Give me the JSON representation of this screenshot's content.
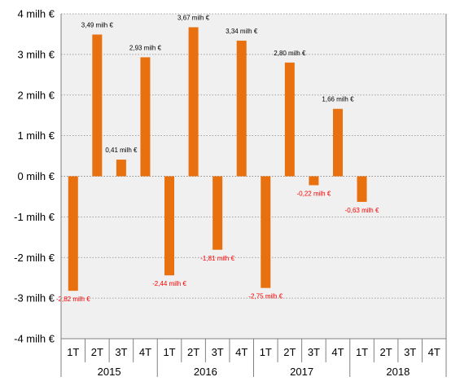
{
  "chart_data": {
    "type": "bar",
    "title": "",
    "xlabel": "",
    "ylabel": "",
    "ylim": [
      -4,
      4
    ],
    "yticks": [
      {
        "value": 4,
        "label": "4 milh €"
      },
      {
        "value": 3,
        "label": "3 milh €"
      },
      {
        "value": 2,
        "label": "2 milh €"
      },
      {
        "value": 1,
        "label": "1 milh €"
      },
      {
        "value": 0,
        "label": "0 milh €"
      },
      {
        "value": -1,
        "label": "-1 milh €"
      },
      {
        "value": -2,
        "label": "-2 milh €"
      },
      {
        "value": -3,
        "label": "-3 milh €"
      },
      {
        "value": -4,
        "label": "-4 milh €"
      }
    ],
    "groups": [
      {
        "label": "2015",
        "quarters": [
          "1T",
          "2T",
          "3T",
          "4T"
        ]
      },
      {
        "label": "2016",
        "quarters": [
          "1T",
          "2T",
          "3T",
          "4T"
        ]
      },
      {
        "label": "2017",
        "quarters": [
          "1T",
          "2T",
          "3T",
          "4T"
        ]
      },
      {
        "label": "2018",
        "quarters": [
          "1T",
          "2T",
          "3T",
          "4T"
        ]
      }
    ],
    "values": [
      -2.82,
      3.49,
      0.41,
      2.93,
      -2.44,
      3.67,
      -1.81,
      3.34,
      -2.75,
      2.8,
      -0.22,
      1.66,
      -0.63,
      null,
      null,
      null
    ],
    "data_labels": [
      "-2,82 milh €",
      "3,49 milh €",
      "0,41 milh €",
      "2,93 milh €",
      "-2,44 milh €",
      "3,67 milh €",
      "-1,81 milh €",
      "3,34 milh €",
      "-2,75 milh €",
      "2,80 milh €",
      "-0,22 milh €",
      "1,66 milh €",
      "-0,63 milh €",
      "",
      "",
      ""
    ],
    "grid": true,
    "colors": {
      "bar": "#E8700F",
      "positive_label": "#000000",
      "negative_label": "#FF0000",
      "plot_bg": "#F0F0F0",
      "grid": "#888888",
      "axis": "#808080"
    }
  }
}
